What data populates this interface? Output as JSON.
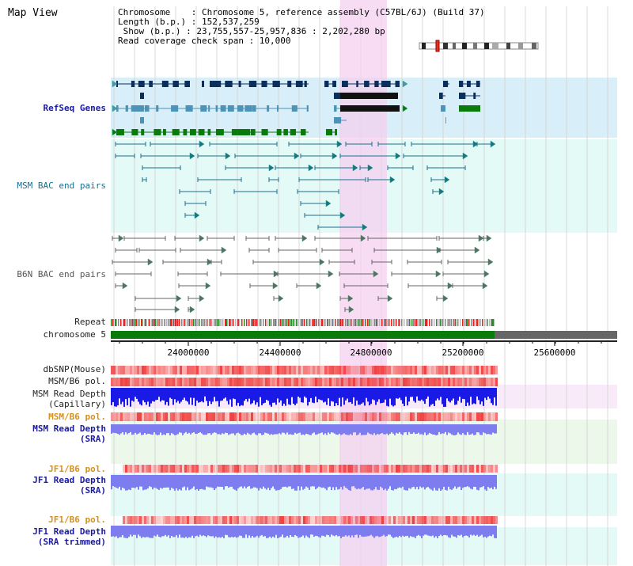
{
  "header": {
    "title": "Map View",
    "chromosome_line": "Chromosome    : Chromosome 5, reference assembly (C57BL/6J) (Build 37)",
    "length_line": "Length (b.p.) : 152,537,259",
    "show_line": " Show (b.p.) : 23,755,557-25,957,836 : 2,202,280 bp",
    "coverage_line": "Read coverage check span : 10,000"
  },
  "tracks": {
    "refseq": "RefSeq Genes",
    "msm_bac": "MSM BAC end pairs",
    "b6n_bac": "B6N BAC end pairs",
    "repeat": "Repeat",
    "chromosome": "chromosome 5",
    "dbsnp": "dbSNP(Mouse)",
    "msm_b6_pol_1": "MSM/B6 pol.",
    "msm_read_depth_cap_1": "MSM Read Depth",
    "msm_read_depth_cap_2": "(Capillary)",
    "msm_b6_pol_2": "MSM/B6 pol.",
    "msm_read_depth_sra_1": "MSM Read Depth",
    "msm_read_depth_sra_2": "(SRA)",
    "jf1_b6_pol_1": "JF1/B6 pol.",
    "jf1_read_depth_sra_1": "JF1 Read Depth",
    "jf1_read_depth_sra_2": "(SRA)",
    "jf1_b6_pol_2": "JF1/B6 pol.",
    "jf1_read_depth_trim_1": "JF1 Read Depth",
    "jf1_read_depth_trim_2": "(SRA trimmed)"
  },
  "axis": {
    "ticks": [
      "24000000",
      "24400000",
      "24800000",
      "25200000",
      "25600000"
    ]
  },
  "colors": {
    "gene_dark": "#0b2f5c",
    "gene_mid": "#4c93b8",
    "gene_green": "#0a7a0a",
    "msm_bac": "#1b6f8f",
    "b6n_bac": "#666666",
    "snp_red": "#f04040",
    "depth_blue": "#1a1ae6",
    "depth_light": "#7d7df0",
    "highlight": "#f4d0f0"
  }
}
